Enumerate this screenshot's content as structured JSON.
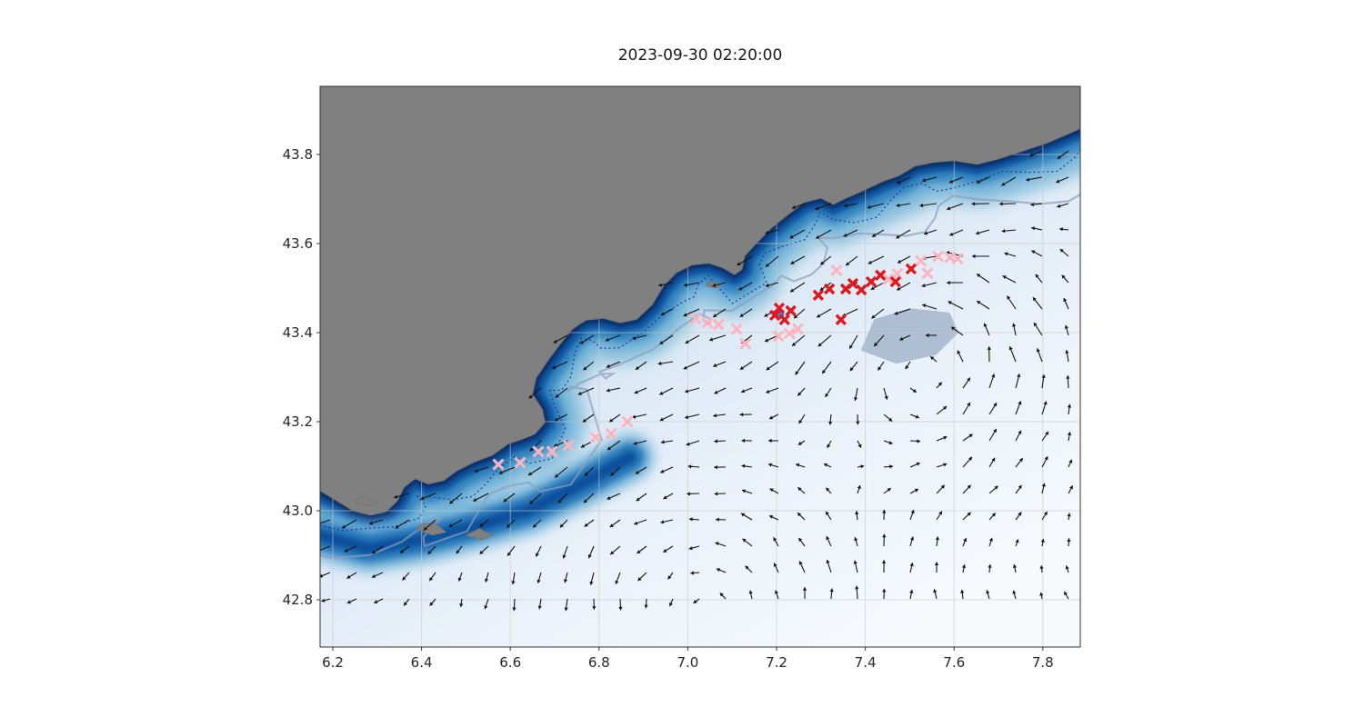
{
  "figure": {
    "title": "2023-09-30 02:20:00",
    "background": "#ffffff"
  },
  "axes": {
    "xlim": [
      6.1713,
      7.8844
    ],
    "ylim": [
      42.694,
      43.953
    ],
    "x_ticks": [
      6.2,
      6.4,
      6.6,
      6.8,
      7.0,
      7.2,
      7.4,
      7.6,
      7.8
    ],
    "x_tick_labels": [
      "6.2",
      "6.4",
      "6.6",
      "6.8",
      "7.0",
      "7.2",
      "7.4",
      "7.6",
      "7.8"
    ],
    "y_ticks": [
      42.8,
      43.0,
      43.2,
      43.4,
      43.6,
      43.8
    ],
    "y_tick_labels": [
      "42.8",
      "43.0",
      "43.2",
      "43.4",
      "43.6",
      "43.8"
    ]
  },
  "chart_data": {
    "type": "map_quiver_scatter",
    "title": "2023-09-30 02:20:00",
    "description": "Coastal ocean map (French Riviera, lon 6.2-7.8, lat 42.8-43.8): gray land, blue bathymetry shading, depth contours, black current-vector quiver arrows, pink and red X event markers along the coast, one blue dot marker.",
    "colors": {
      "land": "#808080",
      "land_edge": "#727272",
      "ocean_gradient": [
        "#aecde8",
        "#d3e3f2",
        "#e9f1f9",
        "#f7fafd"
      ],
      "slate": "#8095b5",
      "arrow": "#141414",
      "grid": "#c8c8c8",
      "frame": "#333333",
      "tick_text": "#262626",
      "pink": "#ffb5c0",
      "red": "#e0181f",
      "blue_dot": "#4a7fd4"
    },
    "coastline": [
      [
        6.171,
        43.045
      ],
      [
        6.205,
        43.025
      ],
      [
        6.245,
        43.0
      ],
      [
        6.285,
        42.99
      ],
      [
        6.32,
        42.998
      ],
      [
        6.345,
        43.022
      ],
      [
        6.36,
        43.052
      ],
      [
        6.385,
        43.072
      ],
      [
        6.415,
        43.06
      ],
      [
        6.45,
        43.068
      ],
      [
        6.48,
        43.09
      ],
      [
        6.52,
        43.11
      ],
      [
        6.56,
        43.125
      ],
      [
        6.595,
        43.15
      ],
      [
        6.625,
        43.16
      ],
      [
        6.655,
        43.172
      ],
      [
        6.678,
        43.198
      ],
      [
        6.672,
        43.228
      ],
      [
        6.65,
        43.262
      ],
      [
        6.658,
        43.298
      ],
      [
        6.685,
        43.338
      ],
      [
        6.715,
        43.378
      ],
      [
        6.74,
        43.408
      ],
      [
        6.77,
        43.428
      ],
      [
        6.81,
        43.432
      ],
      [
        6.848,
        43.422
      ],
      [
        6.885,
        43.43
      ],
      [
        6.92,
        43.463
      ],
      [
        6.945,
        43.505
      ],
      [
        6.975,
        43.535
      ],
      [
        7.01,
        43.552
      ],
      [
        7.048,
        43.556
      ],
      [
        7.08,
        43.545
      ],
      [
        7.105,
        43.53
      ],
      [
        7.122,
        43.542
      ],
      [
        7.128,
        43.572
      ],
      [
        7.152,
        43.598
      ],
      [
        7.185,
        43.632
      ],
      [
        7.222,
        43.662
      ],
      [
        7.262,
        43.692
      ],
      [
        7.3,
        43.702
      ],
      [
        7.328,
        43.688
      ],
      [
        7.352,
        43.7
      ],
      [
        7.398,
        43.72
      ],
      [
        7.44,
        43.74
      ],
      [
        7.475,
        43.752
      ],
      [
        7.512,
        43.774
      ],
      [
        7.552,
        43.782
      ],
      [
        7.6,
        43.786
      ],
      [
        7.652,
        43.778
      ],
      [
        7.7,
        43.79
      ],
      [
        7.755,
        43.808
      ],
      [
        7.81,
        43.826
      ],
      [
        7.852,
        43.844
      ],
      [
        7.884,
        43.858
      ]
    ],
    "islands": [
      [
        [
          6.245,
          43.022
        ],
        [
          6.275,
          43.012
        ],
        [
          6.3,
          43.018
        ],
        [
          6.275,
          43.034
        ]
      ],
      [
        [
          6.39,
          42.958
        ],
        [
          6.425,
          42.945
        ],
        [
          6.455,
          42.952
        ],
        [
          6.43,
          42.972
        ],
        [
          6.4,
          42.97
        ]
      ],
      [
        [
          6.5,
          42.945
        ],
        [
          6.535,
          42.935
        ],
        [
          6.56,
          42.945
        ],
        [
          6.53,
          42.96
        ]
      ],
      [
        [
          7.04,
          43.505
        ],
        [
          7.065,
          43.5
        ],
        [
          7.075,
          43.508
        ],
        [
          7.05,
          43.515
        ]
      ]
    ],
    "shelf_line": [
      [
        6.171,
        42.945
      ],
      [
        6.28,
        42.915
      ],
      [
        6.4,
        42.935
      ],
      [
        6.52,
        42.965
      ],
      [
        6.64,
        43.0
      ],
      [
        6.76,
        43.06
      ],
      [
        6.87,
        43.12
      ]
    ],
    "bathymetry_bands": [
      {
        "width": 95,
        "color": "#9ecae1",
        "blur": "b10"
      },
      {
        "width": 64,
        "color": "#6baed6",
        "blur": "b10"
      },
      {
        "width": 42,
        "color": "#3182bd",
        "blur": "b6"
      },
      {
        "width": 22,
        "color": "#08519c",
        "blur": "b3"
      },
      {
        "width": 9,
        "color": "#08306b",
        "blur": "b2"
      }
    ],
    "shelf_bands": [
      {
        "width": 50,
        "color": "#6baed6",
        "blur": "b10"
      },
      {
        "width": 30,
        "color": "#2171b5",
        "blur": "b6"
      },
      {
        "width": 12,
        "color": "#08519c",
        "blur": "b3"
      }
    ],
    "slate_patch": [
      [
        7.39,
        43.36
      ],
      [
        7.47,
        43.33
      ],
      [
        7.56,
        43.35
      ],
      [
        7.61,
        43.4
      ],
      [
        7.59,
        43.445
      ],
      [
        7.5,
        43.455
      ],
      [
        7.42,
        43.43
      ]
    ],
    "contours": [
      {
        "offset": 0.048,
        "amp": 0.02,
        "freq": 1.35,
        "phase": 0.4,
        "color": "#1b2e8f",
        "width": 1.3,
        "dash": "2 3",
        "opacity": 0.85
      },
      {
        "offset": 0.108,
        "amp": 0.032,
        "freq": 0.85,
        "phase": 1.2,
        "color": "#8b9cbd",
        "width": 2.2,
        "dash": "",
        "opacity": 0.7
      }
    ],
    "quiver": {
      "grid": {
        "x0": 363,
        "y0": 137,
        "dx": 29,
        "dy": 29,
        "cols": 29,
        "rows": 19
      },
      "background": [
        -0.08,
        0.03
      ],
      "jet": {
        "a": [
          6.2,
          43.05
        ],
        "b": [
          7.6,
          43.78
        ],
        "offset": 0.05,
        "width": 0.16,
        "strength": 1.25
      },
      "eddies": [
        {
          "center": [
            7.55,
            43.33
          ],
          "radius": 0.26,
          "strength": 2.1
        },
        {
          "center": [
            7.05,
            42.8
          ],
          "radius": 0.42,
          "strength": 1.5
        }
      ],
      "arrow_scale": {
        "min_len": 7,
        "max_len": 17,
        "speed_max": 1.1
      }
    },
    "markers": {
      "pink": [
        [
          6.573,
          43.104
        ],
        [
          6.622,
          43.108
        ],
        [
          6.663,
          43.133
        ],
        [
          6.694,
          43.133
        ],
        [
          6.731,
          43.147
        ],
        [
          6.792,
          43.165
        ],
        [
          6.827,
          43.173
        ],
        [
          6.864,
          43.2
        ],
        [
          7.018,
          43.431
        ],
        [
          7.044,
          43.422
        ],
        [
          7.069,
          43.418
        ],
        [
          7.11,
          43.408
        ],
        [
          7.13,
          43.375
        ],
        [
          7.204,
          43.392
        ],
        [
          7.229,
          43.398
        ],
        [
          7.248,
          43.408
        ],
        [
          7.335,
          43.54
        ],
        [
          7.452,
          43.52
        ],
        [
          7.472,
          43.532
        ],
        [
          7.525,
          43.561
        ],
        [
          7.54,
          43.533
        ],
        [
          7.564,
          43.571
        ],
        [
          7.591,
          43.569
        ],
        [
          7.608,
          43.566
        ]
      ],
      "red": [
        [
          7.196,
          43.439
        ],
        [
          7.206,
          43.455
        ],
        [
          7.218,
          43.429
        ],
        [
          7.232,
          43.449
        ],
        [
          7.294,
          43.484
        ],
        [
          7.319,
          43.498
        ],
        [
          7.345,
          43.429
        ],
        [
          7.356,
          43.498
        ],
        [
          7.372,
          43.51
        ],
        [
          7.391,
          43.496
        ],
        [
          7.413,
          43.514
        ],
        [
          7.434,
          43.529
        ],
        [
          7.468,
          43.514
        ],
        [
          7.503,
          43.543
        ]
      ],
      "blue_dot": [
        7.206,
        43.441
      ]
    }
  }
}
